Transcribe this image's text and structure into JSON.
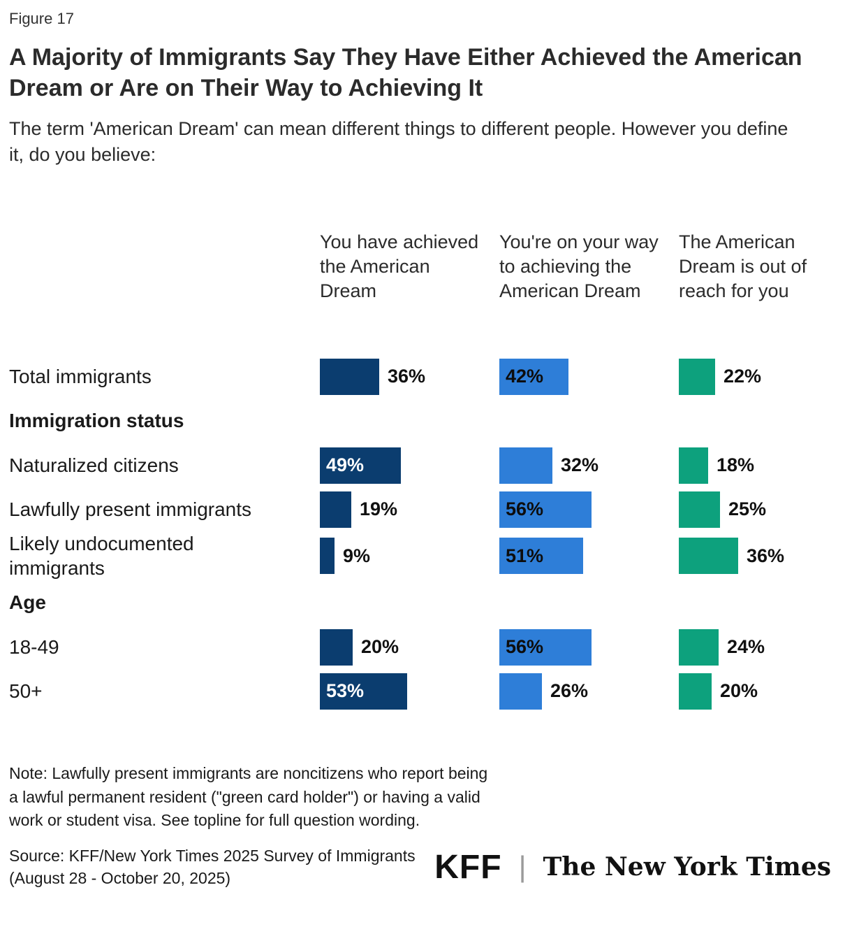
{
  "figure_label": "Figure 17",
  "title": "A Majority of Immigrants Say They Have Either Achieved the American Dream or Are on Their Way to Achieving It",
  "subtitle": "The term 'American Dream' can mean different things to different people. However you define it, do you believe:",
  "chart_data": {
    "type": "bar",
    "orientation": "horizontal",
    "value_suffix": "%",
    "xlim": [
      0,
      60
    ],
    "legend_position": "column-headers",
    "grid": false,
    "series": [
      {
        "name": "You have achieved the American Dream",
        "color": "#0b3d6f",
        "inside_label_color": "#ffffff"
      },
      {
        "name": "You're on your way to achieving the American Dream",
        "color": "#2e7ed8",
        "inside_label_color": "#0d0d0d"
      },
      {
        "name": "The American Dream is out of reach for you",
        "color": "#0da17d",
        "inside_label_color": "#0d0d0d"
      }
    ],
    "rows": [
      {
        "type": "data",
        "label": "Total immigrants",
        "values": [
          36,
          42,
          22
        ]
      },
      {
        "type": "section",
        "label": "Immigration status"
      },
      {
        "type": "data",
        "label": "Naturalized citizens",
        "values": [
          49,
          32,
          18
        ]
      },
      {
        "type": "data",
        "label": "Lawfully present immigrants",
        "values": [
          19,
          56,
          25
        ]
      },
      {
        "type": "data",
        "label": "Likely undocumented immigrants",
        "values": [
          9,
          51,
          36
        ]
      },
      {
        "type": "section",
        "label": "Age"
      },
      {
        "type": "data",
        "label": "18-49",
        "values": [
          20,
          56,
          24
        ]
      },
      {
        "type": "data",
        "label": "50+",
        "values": [
          53,
          26,
          20
        ]
      }
    ]
  },
  "note": "Note: Lawfully present immigrants are noncitizens who report being a lawful permanent resident (\"green card holder\") or having a valid work or student visa. See topline for full question wording.",
  "source": "Source: KFF/New York Times 2025 Survey of Immigrants (August 28 - October 20, 2025)",
  "logos": {
    "kff": "KFF",
    "separator": "|",
    "nyt": "The New York Times"
  }
}
